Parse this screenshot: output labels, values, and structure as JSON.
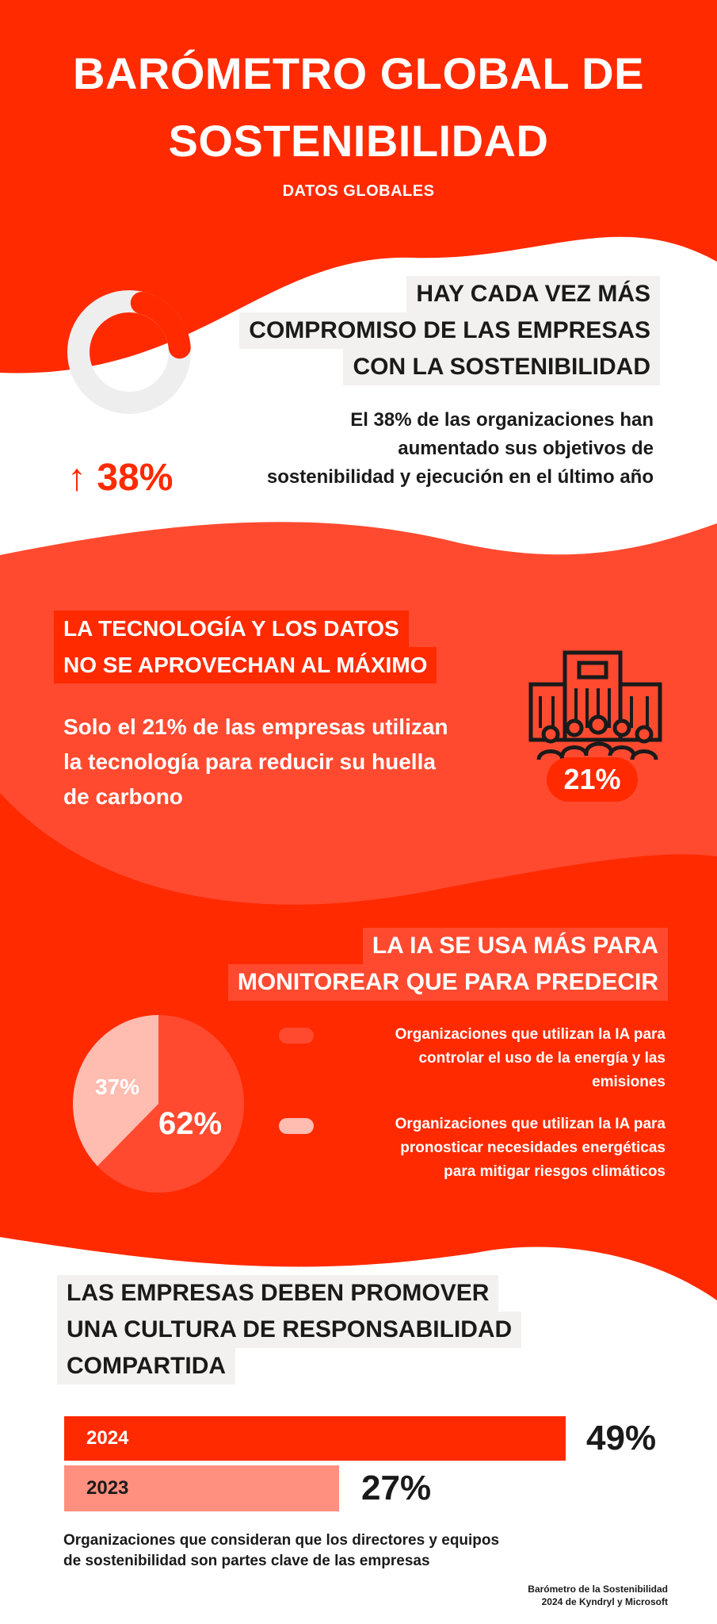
{
  "header": {
    "title_line1": "BARÓMETRO GLOBAL DE",
    "title_line2": "SOSTENIBILIDAD",
    "subtitle": "DATOS GLOBALES"
  },
  "colors": {
    "primary": "#ff2a00",
    "secondary": "#ff4a30",
    "light": "#ffbcb0",
    "panel": "#f3f1ef",
    "text": "#1a1a1a"
  },
  "section1": {
    "heading": [
      "HAY CADA VEZ MÁS",
      "COMPROMISO DE LAS EMPRESAS",
      "CON LA SOSTENIBILIDAD"
    ],
    "body": [
      "El 38% de las organizaciones han",
      "aumentado sus objetivos de",
      "sostenibilidad y ejecución en el último año"
    ],
    "arrow": "↑",
    "stat": "38%",
    "donut_value": 38,
    "icon": "arrow-up-icon"
  },
  "section2": {
    "heading": [
      "LA TECNOLOGÍA Y LOS DATOS",
      "NO SE APROVECHAN AL MÁXIMO"
    ],
    "body": [
      "Solo el 21% de las empresas utilizan",
      "la tecnología para reducir su huella",
      "de carbono"
    ],
    "stat": "21%",
    "icon": "building-people-icon"
  },
  "section3": {
    "heading": [
      "LA IA SE USA MÁS PARA",
      "MONITOREAR QUE PARA PREDECIR"
    ],
    "chart_data": {
      "type": "pie",
      "values": [
        62,
        37
      ],
      "labels": [
        "62%",
        "37%"
      ],
      "colors": [
        "#ff4a30",
        "#ffbcb0"
      ],
      "legend": [
        "Organizaciones que utilizan la IA para controlar el uso de la energía y las emisiones",
        "Organizaciones que utilizan la IA para pronosticar necesidades energéticas para mitigar riesgos climáticos"
      ]
    },
    "legend_lines": [
      [
        "Organizaciones que utilizan la IA para",
        "controlar el uso de la energía y las",
        "emisiones"
      ],
      [
        "Organizaciones que utilizan la IA para",
        "pronosticar necesidades energéticas",
        "para mitigar riesgos climáticos"
      ]
    ]
  },
  "section4": {
    "heading": [
      "LAS EMPRESAS DEBEN PROMOVER",
      "UNA CULTURA DE RESPONSABILIDAD",
      "COMPARTIDA"
    ],
    "chart_data": {
      "type": "bar",
      "orientation": "horizontal",
      "categories": [
        "2024",
        "2023"
      ],
      "values": [
        49,
        27
      ],
      "labels": [
        "49%",
        "27%"
      ],
      "colors": [
        "#ff2a00",
        "#ff8f7e"
      ]
    },
    "caption": [
      "Organizaciones que consideran que los directores y equipos",
      "de sostenibilidad son partes clave de las empresas"
    ]
  },
  "source": [
    "Barómetro de la Sostenibilidad",
    "2024 de Kyndryl y Microsoft"
  ]
}
